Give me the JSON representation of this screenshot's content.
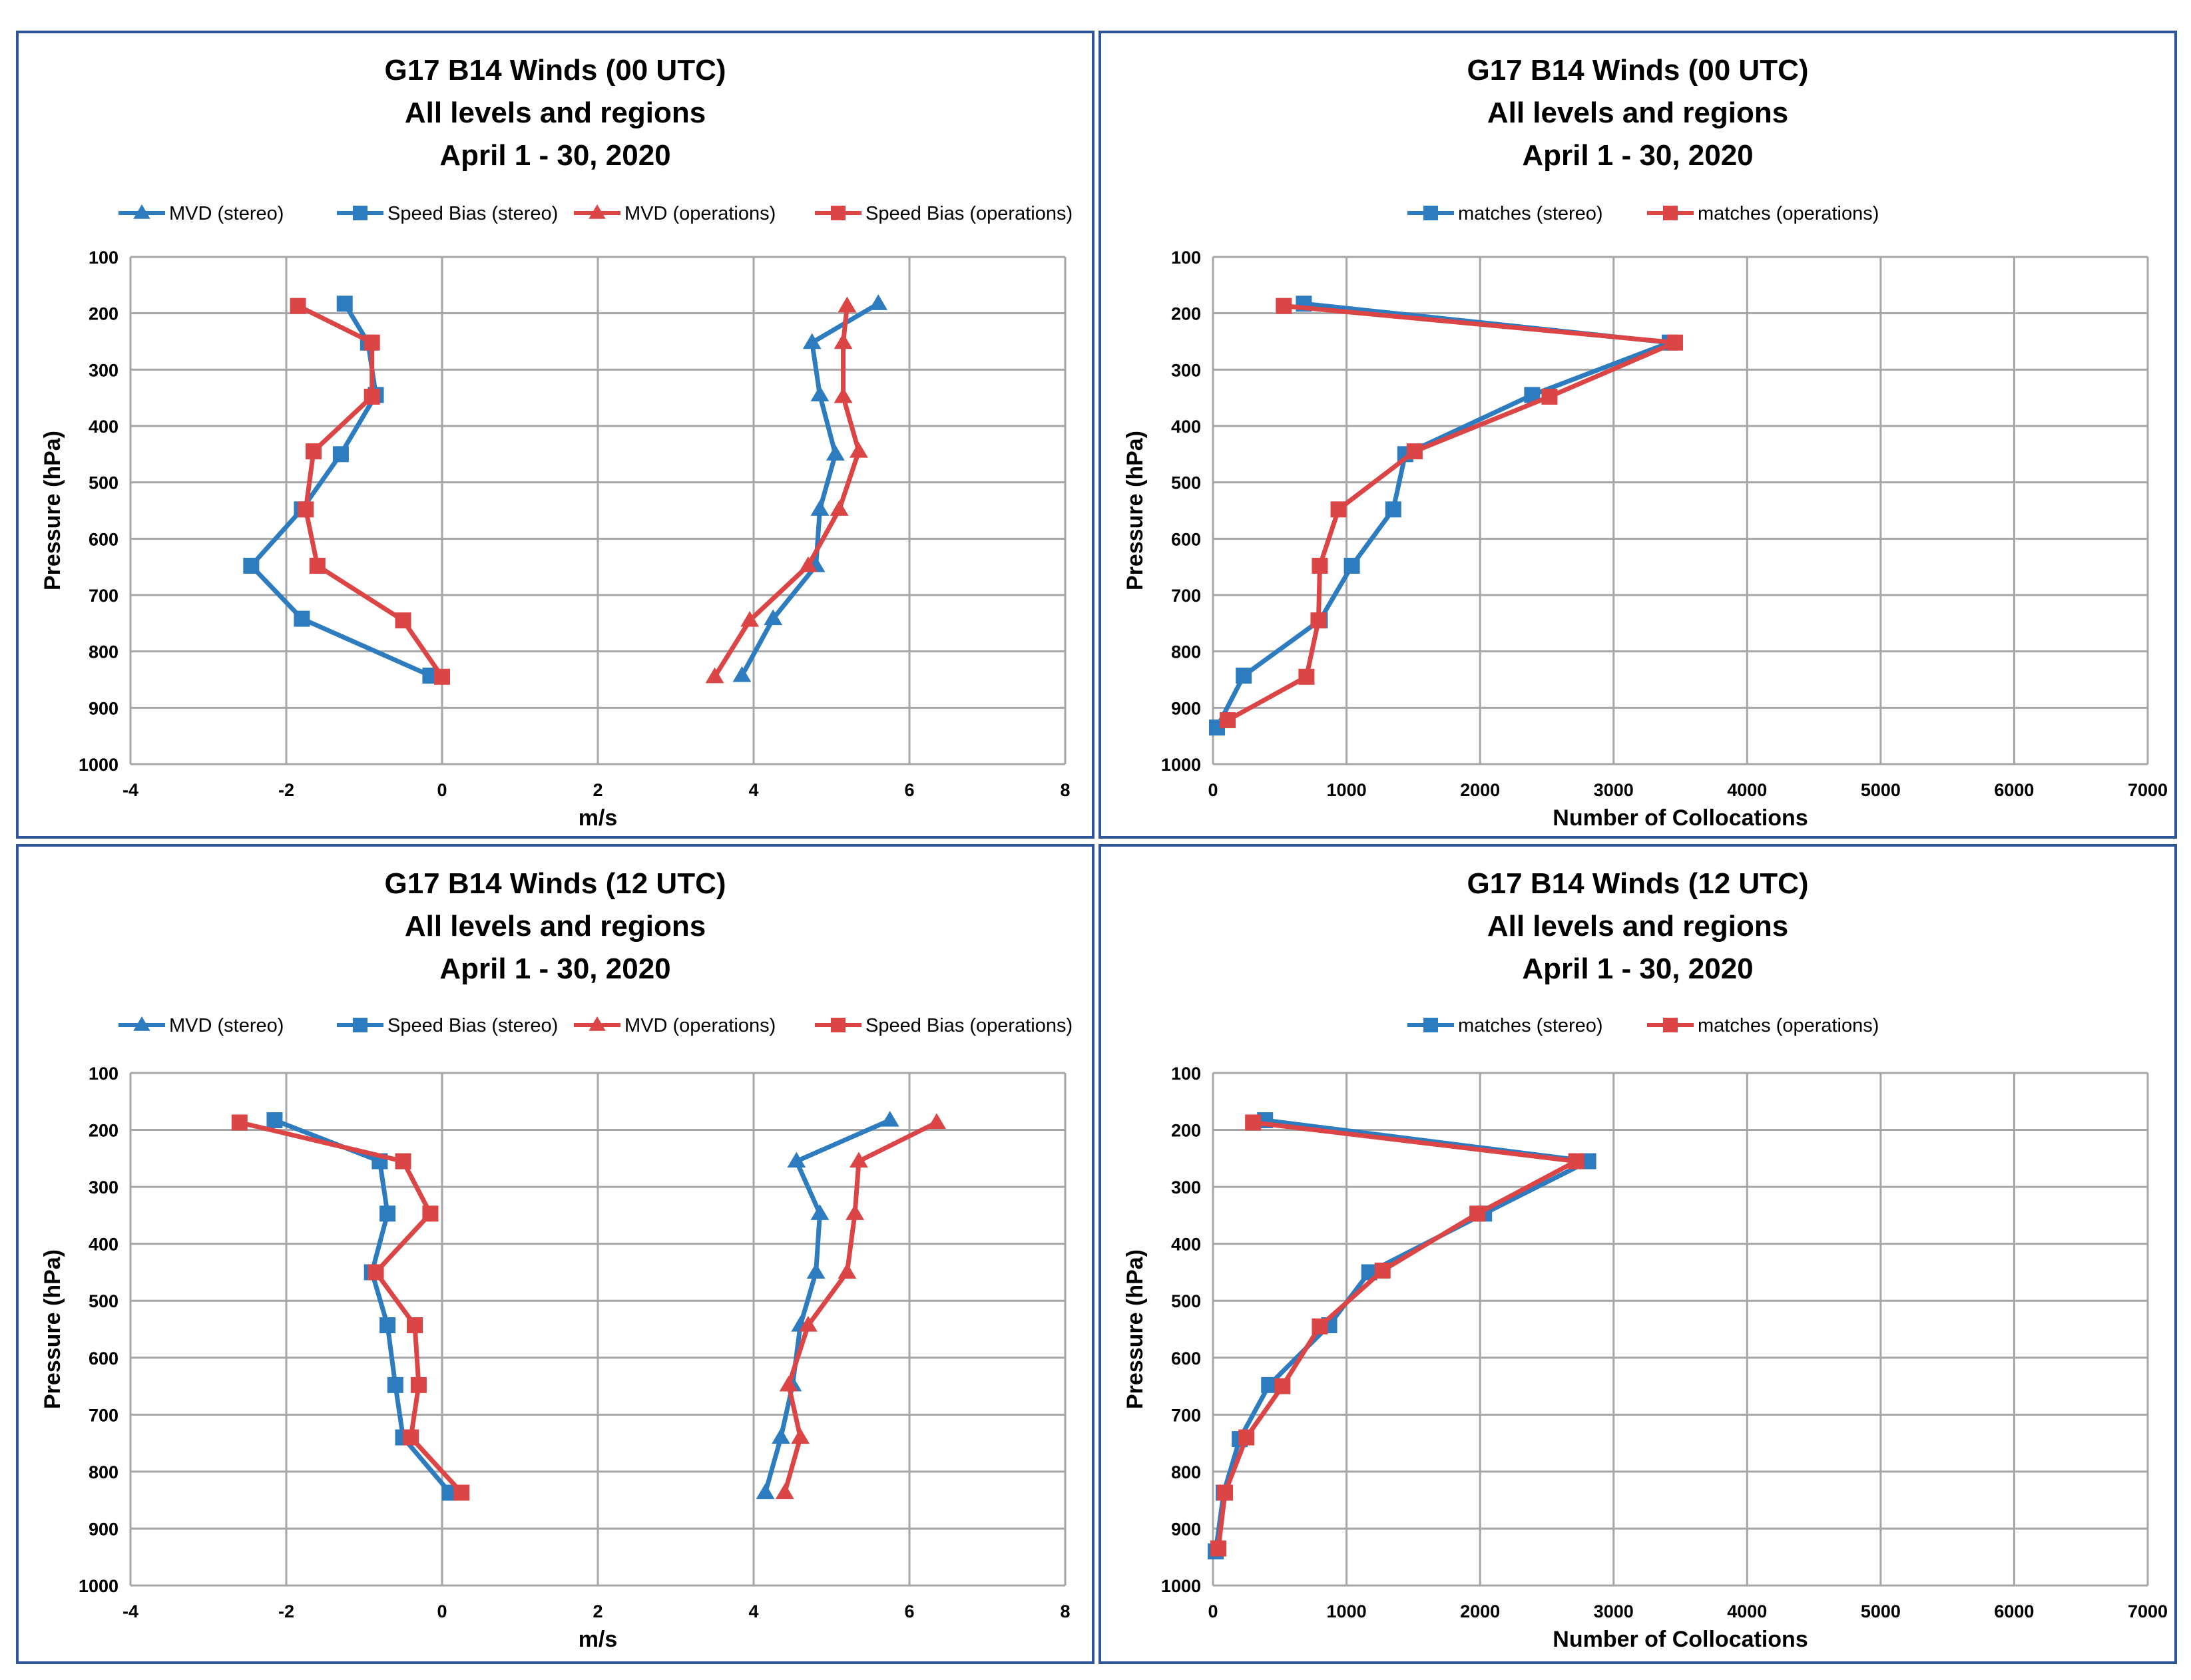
{
  "colors": {
    "stereo": "#2e7cc0",
    "operations": "#dc4545",
    "grid": "#a6a6a6",
    "border": "#2e5597"
  },
  "chart_data": [
    {
      "type": "line",
      "title": [
        "G17 B14 Winds (00 UTC)",
        "All levels and regions",
        "April 1 - 30, 2020"
      ],
      "xlabel": "m/s",
      "ylabel": "Pressure (hPa)",
      "xlim": [
        -4,
        8
      ],
      "ylim": [
        100,
        1000
      ],
      "y_inverted": true,
      "x_ticks": [
        "-4",
        "-2",
        "0",
        "2",
        "4",
        "6",
        "8"
      ],
      "y_ticks": [
        "100",
        "200",
        "300",
        "400",
        "500",
        "600",
        "700",
        "800",
        "900",
        "1000"
      ],
      "legend": "top",
      "series": [
        {
          "name": "MVD (stereo)",
          "color": "stereo",
          "marker": "triangle",
          "points": [
            [
              5.6,
              183
            ],
            [
              4.75,
              252
            ],
            [
              4.85,
              345
            ],
            [
              5.05,
              450
            ],
            [
              4.85,
              548
            ],
            [
              4.8,
              648
            ],
            [
              4.25,
              742
            ],
            [
              3.85,
              843
            ]
          ]
        },
        {
          "name": "Speed Bias (stereo)",
          "color": "stereo",
          "marker": "square",
          "points": [
            [
              -1.25,
              183
            ],
            [
              -0.95,
              252
            ],
            [
              -0.85,
              345
            ],
            [
              -1.3,
              450
            ],
            [
              -1.8,
              548
            ],
            [
              -2.45,
              648
            ],
            [
              -1.8,
              742
            ],
            [
              -0.15,
              843
            ]
          ]
        },
        {
          "name": "MVD (operations)",
          "color": "operations",
          "marker": "triangle",
          "points": [
            [
              5.2,
              187
            ],
            [
              5.15,
              252
            ],
            [
              5.15,
              348
            ],
            [
              5.35,
              445
            ],
            [
              5.1,
              548
            ],
            [
              4.7,
              648
            ],
            [
              3.95,
              745
            ],
            [
              3.5,
              845
            ]
          ]
        },
        {
          "name": "Speed Bias (operations)",
          "color": "operations",
          "marker": "square",
          "points": [
            [
              -1.85,
              187
            ],
            [
              -0.9,
              252
            ],
            [
              -0.9,
              348
            ],
            [
              -1.65,
              445
            ],
            [
              -1.75,
              548
            ],
            [
              -1.6,
              648
            ],
            [
              -0.5,
              745
            ],
            [
              0.0,
              845
            ]
          ]
        }
      ]
    },
    {
      "type": "line",
      "title": [
        "G17 B14 Winds (00 UTC)",
        "All levels and regions",
        "April 1 - 30, 2020"
      ],
      "xlabel": "Number of Collocations",
      "ylabel": "Pressure (hPa)",
      "xlim": [
        0,
        7000
      ],
      "ylim": [
        100,
        1000
      ],
      "y_inverted": true,
      "x_ticks": [
        "0",
        "1000",
        "2000",
        "3000",
        "4000",
        "5000",
        "6000",
        "7000"
      ],
      "y_ticks": [
        "100",
        "200",
        "300",
        "400",
        "500",
        "600",
        "700",
        "800",
        "900",
        "1000"
      ],
      "legend": "top",
      "series": [
        {
          "name": "matches (stereo)",
          "color": "stereo",
          "marker": "square",
          "points": [
            [
              680,
              183
            ],
            [
              3420,
              252
            ],
            [
              2390,
              345
            ],
            [
              1440,
              450
            ],
            [
              1350,
              548
            ],
            [
              1040,
              648
            ],
            [
              800,
              745
            ],
            [
              230,
              843
            ],
            [
              30,
              935
            ]
          ]
        },
        {
          "name": "matches (operations)",
          "color": "operations",
          "marker": "square",
          "points": [
            [
              530,
              187
            ],
            [
              3460,
              252
            ],
            [
              2520,
              348
            ],
            [
              1510,
              445
            ],
            [
              940,
              548
            ],
            [
              800,
              648
            ],
            [
              790,
              745
            ],
            [
              700,
              845
            ],
            [
              110,
              922
            ]
          ]
        }
      ]
    },
    {
      "type": "line",
      "title": [
        "G17 B14 Winds (12 UTC)",
        "All levels and regions",
        "April 1 - 30, 2020"
      ],
      "xlabel": "m/s",
      "ylabel": "Pressure (hPa)",
      "xlim": [
        -4,
        8
      ],
      "ylim": [
        100,
        1000
      ],
      "y_inverted": true,
      "x_ticks": [
        "-4",
        "-2",
        "0",
        "2",
        "4",
        "6",
        "8"
      ],
      "y_ticks": [
        "100",
        "200",
        "300",
        "400",
        "500",
        "600",
        "700",
        "800",
        "900",
        "1000"
      ],
      "legend": "top",
      "series": [
        {
          "name": "MVD (stereo)",
          "color": "stereo",
          "marker": "triangle",
          "points": [
            [
              5.75,
              183
            ],
            [
              4.55,
              255
            ],
            [
              4.85,
              347
            ],
            [
              4.8,
              450
            ],
            [
              4.6,
              543
            ],
            [
              4.5,
              648
            ],
            [
              4.35,
              740
            ],
            [
              4.15,
              837
            ]
          ]
        },
        {
          "name": "Speed Bias (stereo)",
          "color": "stereo",
          "marker": "square",
          "points": [
            [
              -2.15,
              183
            ],
            [
              -0.8,
              255
            ],
            [
              -0.7,
              347
            ],
            [
              -0.9,
              450
            ],
            [
              -0.7,
              543
            ],
            [
              -0.6,
              648
            ],
            [
              -0.5,
              740
            ],
            [
              0.1,
              837
            ]
          ]
        },
        {
          "name": "MVD (operations)",
          "color": "operations",
          "marker": "triangle",
          "points": [
            [
              6.35,
              187
            ],
            [
              5.35,
              255
            ],
            [
              5.3,
              347
            ],
            [
              5.2,
              450
            ],
            [
              4.7,
              543
            ],
            [
              4.45,
              648
            ],
            [
              4.6,
              740
            ],
            [
              4.4,
              837
            ]
          ]
        },
        {
          "name": "Speed Bias (operations)",
          "color": "operations",
          "marker": "square",
          "points": [
            [
              -2.6,
              187
            ],
            [
              -0.5,
              255
            ],
            [
              -0.15,
              347
            ],
            [
              -0.85,
              450
            ],
            [
              -0.35,
              543
            ],
            [
              -0.3,
              648
            ],
            [
              -0.4,
              740
            ],
            [
              0.25,
              837
            ]
          ]
        }
      ]
    },
    {
      "type": "line",
      "title": [
        "G17 B14 Winds (12 UTC)",
        "All levels and regions",
        "April 1 - 30, 2020"
      ],
      "xlabel": "Number of Collocations",
      "ylabel": "Pressure (hPa)",
      "xlim": [
        0,
        7000
      ],
      "ylim": [
        100,
        1000
      ],
      "y_inverted": true,
      "x_ticks": [
        "0",
        "1000",
        "2000",
        "3000",
        "4000",
        "5000",
        "6000",
        "7000"
      ],
      "y_ticks": [
        "100",
        "200",
        "300",
        "400",
        "500",
        "600",
        "700",
        "800",
        "900",
        "1000"
      ],
      "legend": "top",
      "series": [
        {
          "name": "matches (stereo)",
          "color": "stereo",
          "marker": "square",
          "points": [
            [
              390,
              183
            ],
            [
              2810,
              255
            ],
            [
              2030,
              347
            ],
            [
              1170,
              450
            ],
            [
              870,
              543
            ],
            [
              420,
              648
            ],
            [
              200,
              743
            ],
            [
              80,
              837
            ],
            [
              20,
              940
            ]
          ]
        },
        {
          "name": "matches (operations)",
          "color": "operations",
          "marker": "square",
          "points": [
            [
              300,
              187
            ],
            [
              2720,
              255
            ],
            [
              1980,
              347
            ],
            [
              1270,
              447
            ],
            [
              800,
              545
            ],
            [
              520,
              650
            ],
            [
              250,
              740
            ],
            [
              90,
              837
            ],
            [
              40,
              935
            ]
          ]
        }
      ]
    }
  ]
}
